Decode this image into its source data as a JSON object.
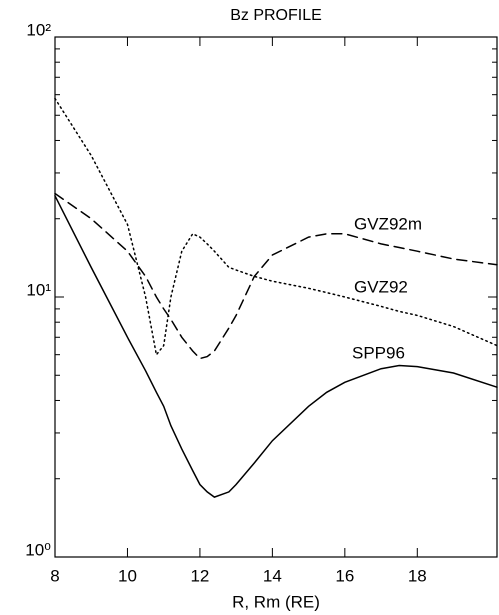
{
  "chart_data": {
    "type": "line",
    "title": "Bz PROFILE",
    "x_label": "R, Rm (RE)",
    "xlim": [
      8,
      20.2
    ],
    "xticks": [
      8,
      10,
      12,
      14,
      16,
      18
    ],
    "ylim": [
      1,
      100
    ],
    "yscale": "log",
    "yticks": [
      {
        "value": 1,
        "label": "10⁰"
      },
      {
        "value": 10,
        "label": "10¹"
      },
      {
        "value": 100,
        "label": "10²"
      }
    ],
    "y_minor_ticks": [
      2,
      3,
      4,
      5,
      6,
      7,
      8,
      9,
      20,
      30,
      40,
      50,
      60,
      70,
      80,
      90
    ],
    "x": [
      8,
      9,
      10,
      10.5,
      10.8,
      11,
      11.2,
      11.5,
      11.8,
      12,
      12.2,
      12.4,
      12.8,
      13,
      13.5,
      14,
      15,
      15.5,
      16,
      17,
      17.5,
      18,
      19,
      20.2
    ],
    "series": [
      {
        "name": "SPP96",
        "color": "#000000",
        "dash": "solid",
        "values": [
          24.5,
          13,
          7,
          5.2,
          4.3,
          3.8,
          3.2,
          2.6,
          2.15,
          1.9,
          1.78,
          1.7,
          1.78,
          1.9,
          2.3,
          2.8,
          3.8,
          4.3,
          4.7,
          5.3,
          5.45,
          5.4,
          5.1,
          4.5
        ]
      },
      {
        "name": "GVZ92",
        "color": "#000000",
        "dash": "dotted",
        "values": [
          58,
          35,
          19,
          10,
          6,
          6.5,
          10,
          15,
          17.5,
          17,
          16,
          15,
          13,
          12.7,
          12,
          11.5,
          10.8,
          10.4,
          10,
          9.2,
          8.8,
          8.5,
          7.7,
          6.5
        ]
      },
      {
        "name": "GVZ92m",
        "color": "#000000",
        "dash": "dashed",
        "values": [
          25,
          20,
          15,
          12,
          10,
          9,
          8.2,
          7,
          6.2,
          5.8,
          5.9,
          6.2,
          7.6,
          8.5,
          12,
          14.5,
          17,
          17.5,
          17.5,
          16,
          15.5,
          15,
          14,
          13.3
        ]
      }
    ]
  }
}
